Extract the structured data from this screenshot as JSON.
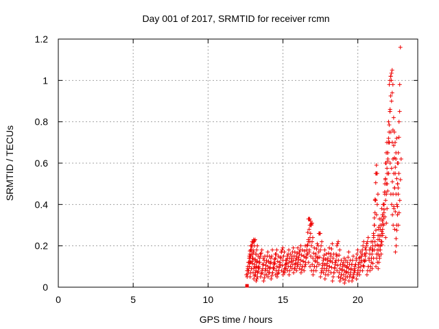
{
  "chart_data": {
    "type": "scatter",
    "title": "Day 001 of 2017, SRMTID for receiver rcmn",
    "xlabel": "GPS time / hours",
    "ylabel": "SRMTID / TECUs",
    "xlim": [
      0,
      24
    ],
    "ylim": [
      0,
      1.2
    ],
    "xticks": [
      0,
      5,
      10,
      15,
      20
    ],
    "xtick_labels": [
      "0",
      "5",
      "10",
      "15",
      "20"
    ],
    "yticks": [
      0,
      0.2,
      0.4,
      0.6,
      0.8,
      1.0,
      1.2
    ],
    "ytick_labels": [
      "0",
      "0.2",
      "0.4",
      "0.6",
      "0.8",
      "1",
      "1.2"
    ],
    "grid": true,
    "series": [
      {
        "name": "SRMTID",
        "color": "#ee0000",
        "marker": "plus",
        "x": [
          12.6,
          12.65,
          12.7,
          12.75,
          12.8,
          12.85,
          12.9,
          12.95,
          13.0,
          13.05,
          13.1,
          13.15,
          13.2,
          13.25,
          13.3,
          13.4,
          13.5,
          13.6,
          13.7,
          13.8,
          13.9,
          14.0,
          14.1,
          14.2,
          14.3,
          14.4,
          14.5,
          14.6,
          14.7,
          14.8,
          14.9,
          15.0,
          15.1,
          15.2,
          15.3,
          15.4,
          15.5,
          15.6,
          15.7,
          15.8,
          15.9,
          16.0,
          16.1,
          16.2,
          16.3,
          16.4,
          16.5,
          16.6,
          16.7,
          16.75,
          16.8,
          16.85,
          16.9,
          17.0,
          17.1,
          17.2,
          17.3,
          17.4,
          17.5,
          17.6,
          17.7,
          17.8,
          17.9,
          18.0,
          18.1,
          18.2,
          18.3,
          18.4,
          18.5,
          18.6,
          18.7,
          18.8,
          18.9,
          19.0,
          19.1,
          19.2,
          19.3,
          19.4,
          19.5,
          19.6,
          19.7,
          19.8,
          19.9,
          20.0,
          20.1,
          20.2,
          20.3,
          20.4,
          20.5,
          20.6,
          20.7,
          20.8,
          20.9,
          21.0,
          21.05,
          21.1,
          21.15,
          21.2,
          21.25,
          21.3,
          21.35,
          21.4,
          21.45,
          21.5,
          21.55,
          21.6,
          21.65,
          21.7,
          21.75,
          21.8,
          21.85,
          21.9,
          21.95,
          22.0,
          22.05,
          22.1,
          22.15,
          22.2,
          22.25,
          22.3,
          22.35,
          22.4,
          22.45,
          22.5,
          22.55,
          22.6,
          22.65,
          22.7,
          22.75,
          22.8
        ],
        "y": [
          0.0,
          0.1,
          0.08,
          0.15,
          0.12,
          0.18,
          0.09,
          0.2,
          0.14,
          0.22,
          0.11,
          0.07,
          0.16,
          0.1,
          0.05,
          0.12,
          0.15,
          0.08,
          0.11,
          0.06,
          0.13,
          0.1,
          0.09,
          0.12,
          0.07,
          0.11,
          0.14,
          0.1,
          0.08,
          0.12,
          0.17,
          0.13,
          0.09,
          0.11,
          0.14,
          0.12,
          0.1,
          0.15,
          0.13,
          0.11,
          0.14,
          0.12,
          0.16,
          0.13,
          0.1,
          0.15,
          0.12,
          0.18,
          0.33,
          0.28,
          0.22,
          0.3,
          0.2,
          0.14,
          0.1,
          0.16,
          0.12,
          0.26,
          0.18,
          0.09,
          0.13,
          0.11,
          0.08,
          0.14,
          0.1,
          0.16,
          0.12,
          0.07,
          0.11,
          0.2,
          0.13,
          0.09,
          0.06,
          0.1,
          0.08,
          0.05,
          0.12,
          0.09,
          0.07,
          0.11,
          0.06,
          0.09,
          0.14,
          0.08,
          0.12,
          0.1,
          0.18,
          0.13,
          0.15,
          0.2,
          0.1,
          0.16,
          0.12,
          0.22,
          0.14,
          0.3,
          0.42,
          0.55,
          0.35,
          0.18,
          0.25,
          0.2,
          0.15,
          0.28,
          0.22,
          0.3,
          0.25,
          0.34,
          0.4,
          0.45,
          0.6,
          0.5,
          0.38,
          0.65,
          0.72,
          0.98,
          0.85,
          1.02,
          0.9,
          0.7,
          0.62,
          0.55,
          0.48,
          0.58,
          0.45,
          0.3,
          0.35,
          0.6,
          0.8,
          0.42
        ],
        "hi": [
          0.0,
          0.14,
          0.16,
          0.2,
          0.18,
          0.22,
          0.16,
          0.23,
          0.2,
          0.23,
          0.16,
          0.12,
          0.2,
          0.15,
          0.1,
          0.16,
          0.18,
          0.14,
          0.15,
          0.12,
          0.17,
          0.15,
          0.14,
          0.18,
          0.12,
          0.16,
          0.18,
          0.15,
          0.12,
          0.17,
          0.19,
          0.17,
          0.13,
          0.15,
          0.18,
          0.16,
          0.14,
          0.19,
          0.17,
          0.15,
          0.19,
          0.17,
          0.2,
          0.18,
          0.15,
          0.2,
          0.16,
          0.23,
          0.33,
          0.32,
          0.3,
          0.31,
          0.24,
          0.19,
          0.15,
          0.21,
          0.17,
          0.26,
          0.22,
          0.14,
          0.18,
          0.16,
          0.13,
          0.19,
          0.15,
          0.21,
          0.16,
          0.12,
          0.15,
          0.22,
          0.18,
          0.13,
          0.11,
          0.14,
          0.13,
          0.1,
          0.17,
          0.13,
          0.11,
          0.15,
          0.1,
          0.13,
          0.18,
          0.14,
          0.17,
          0.16,
          0.22,
          0.19,
          0.21,
          0.24,
          0.18,
          0.22,
          0.2,
          0.3,
          0.22,
          0.42,
          0.59,
          0.55,
          0.45,
          0.28,
          0.33,
          0.3,
          0.25,
          0.38,
          0.32,
          0.4,
          0.36,
          0.46,
          0.52,
          0.6,
          0.7,
          0.65,
          0.55,
          0.75,
          0.85,
          1.02,
          1.0,
          1.05,
          0.98,
          0.82,
          0.75,
          0.7,
          0.62,
          0.72,
          0.6,
          0.48,
          0.55,
          0.85,
          1.16,
          0.62
        ],
        "lo": [
          0.0,
          0.06,
          0.05,
          0.09,
          0.08,
          0.1,
          0.05,
          0.12,
          0.09,
          0.14,
          0.07,
          0.04,
          0.1,
          0.06,
          0.03,
          0.07,
          0.09,
          0.05,
          0.07,
          0.03,
          0.08,
          0.06,
          0.05,
          0.07,
          0.04,
          0.07,
          0.09,
          0.06,
          0.05,
          0.07,
          0.11,
          0.08,
          0.06,
          0.07,
          0.09,
          0.08,
          0.06,
          0.1,
          0.09,
          0.07,
          0.09,
          0.08,
          0.11,
          0.09,
          0.07,
          0.1,
          0.08,
          0.11,
          0.2,
          0.16,
          0.12,
          0.18,
          0.1,
          0.08,
          0.06,
          0.1,
          0.08,
          0.14,
          0.11,
          0.05,
          0.08,
          0.07,
          0.04,
          0.09,
          0.06,
          0.1,
          0.07,
          0.03,
          0.07,
          0.12,
          0.08,
          0.05,
          0.03,
          0.06,
          0.04,
          0.02,
          0.07,
          0.05,
          0.03,
          0.06,
          0.03,
          0.05,
          0.08,
          0.04,
          0.07,
          0.06,
          0.12,
          0.08,
          0.1,
          0.13,
          0.06,
          0.1,
          0.08,
          0.14,
          0.09,
          0.18,
          0.25,
          0.3,
          0.2,
          0.1,
          0.16,
          0.12,
          0.09,
          0.18,
          0.14,
          0.2,
          0.16,
          0.22,
          0.26,
          0.3,
          0.4,
          0.34,
          0.24,
          0.45,
          0.5,
          0.62,
          0.55,
          0.7,
          0.6,
          0.45,
          0.4,
          0.35,
          0.3,
          0.38,
          0.28,
          0.17,
          0.2,
          0.4,
          0.5,
          0.3
        ]
      }
    ]
  }
}
